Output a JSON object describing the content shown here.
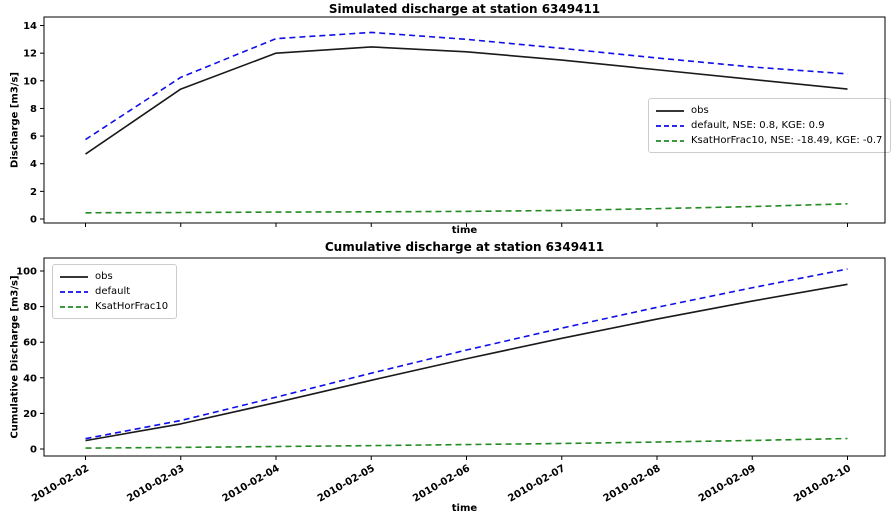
{
  "figure": {
    "background": "#ffffff",
    "axis_color": "#000000"
  },
  "chart_data": [
    {
      "type": "line",
      "title": "Simulated discharge at station 6349411",
      "xlabel": "time",
      "ylabel": "Discharge [m3/s]",
      "x": [
        "2010-02-02",
        "2010-02-03",
        "2010-02-04",
        "2010-02-05",
        "2010-02-06",
        "2010-02-07",
        "2010-02-08",
        "2010-02-09",
        "2010-02-10"
      ],
      "x_tick_labels_visible": false,
      "yticks": [
        0,
        2,
        4,
        6,
        8,
        10,
        12,
        14
      ],
      "ylim": [
        -0.3,
        14.6
      ],
      "grid": false,
      "legend_position": "center right",
      "series": [
        {
          "name": "obs",
          "label": "obs",
          "color": "#1a1a1a",
          "style": "solid",
          "values": [
            4.7,
            9.4,
            12.0,
            12.45,
            12.1,
            11.5,
            10.8,
            10.1,
            9.4
          ]
        },
        {
          "name": "default",
          "label": "default, NSE: 0.8, KGE: 0.9",
          "color": "#0f0fe8",
          "style": "dashed",
          "values": [
            5.75,
            10.25,
            13.05,
            13.5,
            13.0,
            12.35,
            11.65,
            11.0,
            10.5
          ]
        },
        {
          "name": "KsatHorFrac10",
          "label": "KsatHorFrac10, NSE: -18.49, KGE: -0.7",
          "color": "#228b22",
          "style": "dashed",
          "values": [
            0.45,
            0.47,
            0.5,
            0.52,
            0.55,
            0.62,
            0.75,
            0.9,
            1.1
          ]
        }
      ]
    },
    {
      "type": "line",
      "title": "Cumulative discharge at station 6349411",
      "xlabel": "time",
      "ylabel": "Cumulative Discharge [m3/s]",
      "x": [
        "2010-02-02",
        "2010-02-03",
        "2010-02-04",
        "2010-02-05",
        "2010-02-06",
        "2010-02-07",
        "2010-02-08",
        "2010-02-09",
        "2010-02-10"
      ],
      "x_tick_labels_visible": true,
      "x_tick_rotation": 30,
      "yticks": [
        0,
        20,
        40,
        60,
        80,
        100
      ],
      "ylim": [
        -4,
        107
      ],
      "grid": false,
      "legend_position": "upper left",
      "series": [
        {
          "name": "obs",
          "label": "obs",
          "color": "#1a1a1a",
          "style": "solid",
          "values": [
            4.7,
            14.1,
            26.1,
            38.6,
            50.7,
            62.2,
            73.0,
            83.1,
            92.5
          ]
        },
        {
          "name": "default",
          "label": "default",
          "color": "#0f0fe8",
          "style": "dashed",
          "values": [
            5.8,
            16.0,
            29.1,
            42.6,
            55.6,
            67.9,
            79.6,
            90.6,
            101.1
          ]
        },
        {
          "name": "KsatHorFrac10",
          "label": "KsatHorFrac10",
          "color": "#228b22",
          "style": "dashed",
          "values": [
            0.5,
            0.9,
            1.4,
            1.9,
            2.5,
            3.1,
            3.9,
            4.8,
            5.9
          ]
        }
      ]
    }
  ]
}
